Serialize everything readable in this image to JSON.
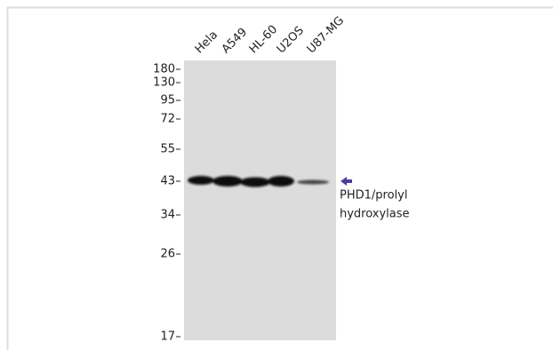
{
  "lanes": [
    "Hela",
    "A549",
    "HL-60",
    "U2OS",
    "U87-MG"
  ],
  "markers": [
    "180",
    "130",
    "95",
    "72",
    "55",
    "43",
    "34",
    "26",
    "17"
  ],
  "annotation": {
    "lines": [
      "PHD1/prolyl",
      "hydroxylase"
    ]
  }
}
